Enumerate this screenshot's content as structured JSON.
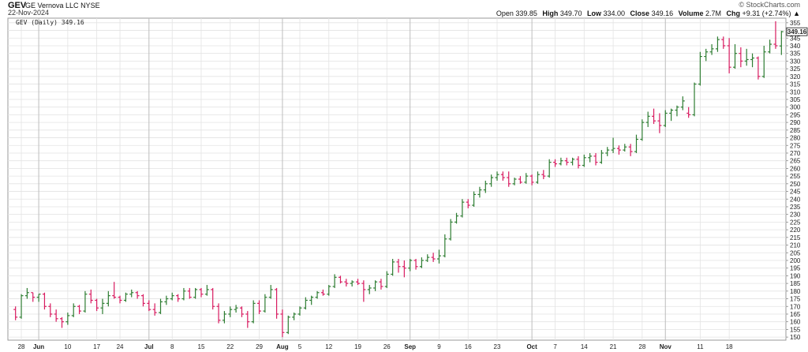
{
  "header": {
    "symbol": "GEV",
    "company": "GE Vernova LLC",
    "exchange": "NYSE",
    "date": "22-Nov-2024",
    "brand": "© StockCharts.com",
    "quote": {
      "open_label": "Open",
      "open": "339.85",
      "high_label": "High",
      "high": "349.70",
      "low_label": "Low",
      "low": "334.00",
      "close_label": "Close",
      "close": "349.16",
      "volume_label": "Volume",
      "volume": "2.7M",
      "chg_label": "Chg",
      "chg": "+9.31 (+2.74%)",
      "chg_arrow": "▲"
    }
  },
  "colors": {
    "up": "#2e7d32",
    "down": "#d81b60",
    "grid": "#e3e3e3",
    "axis": "#888888"
  },
  "chart_data": {
    "type": "ohlc",
    "legend": "GEV (Daily) 349.16",
    "last_price_label": "349.16",
    "ylim": [
      148,
      358
    ],
    "y_ticks": [
      150,
      155,
      160,
      165,
      170,
      175,
      180,
      185,
      190,
      195,
      200,
      205,
      210,
      215,
      220,
      225,
      230,
      235,
      240,
      245,
      250,
      255,
      260,
      265,
      270,
      275,
      280,
      285,
      290,
      295,
      300,
      305,
      310,
      315,
      320,
      325,
      330,
      335,
      340,
      345,
      350,
      355
    ],
    "x_ticks": [
      {
        "label": "28",
        "bar": 1,
        "month": false
      },
      {
        "label": "Jun",
        "bar": 4,
        "month": true
      },
      {
        "label": "10",
        "bar": 9,
        "month": false
      },
      {
        "label": "17",
        "bar": 14,
        "month": false
      },
      {
        "label": "24",
        "bar": 18,
        "month": false
      },
      {
        "label": "Jul",
        "bar": 23,
        "month": true
      },
      {
        "label": "8",
        "bar": 27,
        "month": false
      },
      {
        "label": "15",
        "bar": 32,
        "month": false
      },
      {
        "label": "22",
        "bar": 37,
        "month": false
      },
      {
        "label": "29",
        "bar": 42,
        "month": false
      },
      {
        "label": "Aug",
        "bar": 46,
        "month": true
      },
      {
        "label": "5",
        "bar": 49,
        "month": false
      },
      {
        "label": "12",
        "bar": 54,
        "month": false
      },
      {
        "label": "19",
        "bar": 59,
        "month": false
      },
      {
        "label": "26",
        "bar": 64,
        "month": false
      },
      {
        "label": "Sep",
        "bar": 68,
        "month": true
      },
      {
        "label": "9",
        "bar": 73,
        "month": false
      },
      {
        "label": "16",
        "bar": 78,
        "month": false
      },
      {
        "label": "23",
        "bar": 83,
        "month": false
      },
      {
        "label": "Oct",
        "bar": 89,
        "month": true
      },
      {
        "label": "7",
        "bar": 93,
        "month": false
      },
      {
        "label": "14",
        "bar": 98,
        "month": false
      },
      {
        "label": "21",
        "bar": 103,
        "month": false
      },
      {
        "label": "28",
        "bar": 108,
        "month": false
      },
      {
        "label": "Nov",
        "bar": 112,
        "month": true
      },
      {
        "label": "11",
        "bar": 118,
        "month": false
      },
      {
        "label": "18",
        "bar": 123,
        "month": false
      }
    ],
    "bars": [
      {
        "o": 168,
        "h": 170,
        "l": 161,
        "c": 163
      },
      {
        "o": 163,
        "h": 178,
        "l": 162,
        "c": 177
      },
      {
        "o": 177,
        "h": 182,
        "l": 175,
        "c": 179
      },
      {
        "o": 179,
        "h": 179,
        "l": 173,
        "c": 176
      },
      {
        "o": 176,
        "h": 178,
        "l": 173,
        "c": 178
      },
      {
        "o": 178,
        "h": 179,
        "l": 168,
        "c": 170
      },
      {
        "o": 170,
        "h": 172,
        "l": 163,
        "c": 165
      },
      {
        "o": 165,
        "h": 168,
        "l": 160,
        "c": 162
      },
      {
        "o": 162,
        "h": 163,
        "l": 156,
        "c": 160
      },
      {
        "o": 160,
        "h": 166,
        "l": 158,
        "c": 164
      },
      {
        "o": 164,
        "h": 172,
        "l": 163,
        "c": 170
      },
      {
        "o": 170,
        "h": 171,
        "l": 165,
        "c": 167
      },
      {
        "o": 167,
        "h": 180,
        "l": 166,
        "c": 178
      },
      {
        "o": 178,
        "h": 181,
        "l": 172,
        "c": 174
      },
      {
        "o": 174,
        "h": 175,
        "l": 167,
        "c": 169
      },
      {
        "o": 169,
        "h": 175,
        "l": 165,
        "c": 172
      },
      {
        "o": 172,
        "h": 180,
        "l": 170,
        "c": 177
      },
      {
        "o": 177,
        "h": 186,
        "l": 175,
        "c": 176
      },
      {
        "o": 176,
        "h": 177,
        "l": 172,
        "c": 174
      },
      {
        "o": 174,
        "h": 179,
        "l": 173,
        "c": 178
      },
      {
        "o": 178,
        "h": 181,
        "l": 176,
        "c": 179
      },
      {
        "o": 179,
        "h": 180,
        "l": 175,
        "c": 177
      },
      {
        "o": 177,
        "h": 178,
        "l": 170,
        "c": 172
      },
      {
        "o": 172,
        "h": 174,
        "l": 167,
        "c": 168
      },
      {
        "o": 168,
        "h": 172,
        "l": 164,
        "c": 166
      },
      {
        "o": 166,
        "h": 175,
        "l": 165,
        "c": 173
      },
      {
        "o": 173,
        "h": 177,
        "l": 171,
        "c": 175
      },
      {
        "o": 175,
        "h": 179,
        "l": 174,
        "c": 177
      },
      {
        "o": 177,
        "h": 178,
        "l": 173,
        "c": 175
      },
      {
        "o": 175,
        "h": 182,
        "l": 174,
        "c": 180
      },
      {
        "o": 180,
        "h": 182,
        "l": 175,
        "c": 176
      },
      {
        "o": 176,
        "h": 182,
        "l": 175,
        "c": 181
      },
      {
        "o": 181,
        "h": 182,
        "l": 176,
        "c": 178
      },
      {
        "o": 178,
        "h": 184,
        "l": 177,
        "c": 181
      },
      {
        "o": 181,
        "h": 182,
        "l": 168,
        "c": 170
      },
      {
        "o": 170,
        "h": 172,
        "l": 159,
        "c": 161
      },
      {
        "o": 161,
        "h": 167,
        "l": 159,
        "c": 165
      },
      {
        "o": 165,
        "h": 170,
        "l": 163,
        "c": 168
      },
      {
        "o": 168,
        "h": 171,
        "l": 166,
        "c": 169
      },
      {
        "o": 169,
        "h": 170,
        "l": 163,
        "c": 165
      },
      {
        "o": 165,
        "h": 167,
        "l": 156,
        "c": 160
      },
      {
        "o": 160,
        "h": 174,
        "l": 159,
        "c": 172
      },
      {
        "o": 172,
        "h": 174,
        "l": 165,
        "c": 167
      },
      {
        "o": 167,
        "h": 178,
        "l": 166,
        "c": 176
      },
      {
        "o": 176,
        "h": 184,
        "l": 175,
        "c": 181
      },
      {
        "o": 181,
        "h": 182,
        "l": 162,
        "c": 165
      },
      {
        "o": 165,
        "h": 168,
        "l": 150,
        "c": 153
      },
      {
        "o": 153,
        "h": 164,
        "l": 152,
        "c": 163
      },
      {
        "o": 163,
        "h": 166,
        "l": 161,
        "c": 165
      },
      {
        "o": 165,
        "h": 170,
        "l": 164,
        "c": 169
      },
      {
        "o": 169,
        "h": 176,
        "l": 168,
        "c": 174
      },
      {
        "o": 174,
        "h": 177,
        "l": 171,
        "c": 176
      },
      {
        "o": 176,
        "h": 180,
        "l": 175,
        "c": 179
      },
      {
        "o": 179,
        "h": 181,
        "l": 177,
        "c": 178
      },
      {
        "o": 178,
        "h": 184,
        "l": 177,
        "c": 183
      },
      {
        "o": 183,
        "h": 191,
        "l": 182,
        "c": 189
      },
      {
        "o": 189,
        "h": 190,
        "l": 185,
        "c": 186
      },
      {
        "o": 186,
        "h": 188,
        "l": 183,
        "c": 185
      },
      {
        "o": 185,
        "h": 187,
        "l": 183,
        "c": 186
      },
      {
        "o": 186,
        "h": 188,
        "l": 184,
        "c": 185
      },
      {
        "o": 185,
        "h": 187,
        "l": 173,
        "c": 181
      },
      {
        "o": 181,
        "h": 184,
        "l": 178,
        "c": 182
      },
      {
        "o": 182,
        "h": 187,
        "l": 180,
        "c": 186
      },
      {
        "o": 186,
        "h": 188,
        "l": 181,
        "c": 183
      },
      {
        "o": 183,
        "h": 193,
        "l": 182,
        "c": 191
      },
      {
        "o": 191,
        "h": 201,
        "l": 190,
        "c": 199
      },
      {
        "o": 199,
        "h": 201,
        "l": 192,
        "c": 196
      },
      {
        "o": 196,
        "h": 200,
        "l": 189,
        "c": 195
      },
      {
        "o": 195,
        "h": 201,
        "l": 193,
        "c": 200
      },
      {
        "o": 200,
        "h": 201,
        "l": 194,
        "c": 196
      },
      {
        "o": 196,
        "h": 202,
        "l": 195,
        "c": 200
      },
      {
        "o": 200,
        "h": 204,
        "l": 199,
        "c": 202
      },
      {
        "o": 202,
        "h": 205,
        "l": 199,
        "c": 201
      },
      {
        "o": 201,
        "h": 207,
        "l": 198,
        "c": 203
      },
      {
        "o": 203,
        "h": 217,
        "l": 202,
        "c": 214
      },
      {
        "o": 214,
        "h": 227,
        "l": 213,
        "c": 225
      },
      {
        "o": 225,
        "h": 231,
        "l": 224,
        "c": 229
      },
      {
        "o": 229,
        "h": 240,
        "l": 228,
        "c": 238
      },
      {
        "o": 238,
        "h": 240,
        "l": 234,
        "c": 236
      },
      {
        "o": 236,
        "h": 245,
        "l": 235,
        "c": 243
      },
      {
        "o": 243,
        "h": 248,
        "l": 241,
        "c": 246
      },
      {
        "o": 246,
        "h": 252,
        "l": 244,
        "c": 250
      },
      {
        "o": 250,
        "h": 256,
        "l": 248,
        "c": 254
      },
      {
        "o": 254,
        "h": 258,
        "l": 252,
        "c": 256
      },
      {
        "o": 256,
        "h": 258,
        "l": 252,
        "c": 254
      },
      {
        "o": 254,
        "h": 258,
        "l": 248,
        "c": 250
      },
      {
        "o": 250,
        "h": 254,
        "l": 249,
        "c": 253
      },
      {
        "o": 253,
        "h": 255,
        "l": 250,
        "c": 251
      },
      {
        "o": 251,
        "h": 257,
        "l": 250,
        "c": 255
      },
      {
        "o": 255,
        "h": 256,
        "l": 249,
        "c": 251
      },
      {
        "o": 251,
        "h": 258,
        "l": 250,
        "c": 256
      },
      {
        "o": 256,
        "h": 259,
        "l": 253,
        "c": 255
      },
      {
        "o": 255,
        "h": 266,
        "l": 254,
        "c": 264
      },
      {
        "o": 264,
        "h": 266,
        "l": 261,
        "c": 263
      },
      {
        "o": 263,
        "h": 267,
        "l": 262,
        "c": 265
      },
      {
        "o": 265,
        "h": 267,
        "l": 262,
        "c": 264
      },
      {
        "o": 264,
        "h": 267,
        "l": 262,
        "c": 266
      },
      {
        "o": 266,
        "h": 268,
        "l": 260,
        "c": 262
      },
      {
        "o": 262,
        "h": 269,
        "l": 261,
        "c": 267
      },
      {
        "o": 267,
        "h": 270,
        "l": 264,
        "c": 268
      },
      {
        "o": 268,
        "h": 270,
        "l": 262,
        "c": 264
      },
      {
        "o": 264,
        "h": 272,
        "l": 263,
        "c": 270
      },
      {
        "o": 270,
        "h": 274,
        "l": 268,
        "c": 272
      },
      {
        "o": 272,
        "h": 280,
        "l": 270,
        "c": 273
      },
      {
        "o": 273,
        "h": 275,
        "l": 269,
        "c": 272
      },
      {
        "o": 272,
        "h": 276,
        "l": 271,
        "c": 274
      },
      {
        "o": 274,
        "h": 276,
        "l": 268,
        "c": 271
      },
      {
        "o": 271,
        "h": 282,
        "l": 270,
        "c": 279
      },
      {
        "o": 279,
        "h": 292,
        "l": 278,
        "c": 290
      },
      {
        "o": 290,
        "h": 297,
        "l": 287,
        "c": 294
      },
      {
        "o": 294,
        "h": 299,
        "l": 289,
        "c": 291
      },
      {
        "o": 291,
        "h": 296,
        "l": 283,
        "c": 288
      },
      {
        "o": 288,
        "h": 298,
        "l": 287,
        "c": 296
      },
      {
        "o": 296,
        "h": 299,
        "l": 291,
        "c": 298
      },
      {
        "o": 298,
        "h": 301,
        "l": 294,
        "c": 300
      },
      {
        "o": 300,
        "h": 307,
        "l": 298,
        "c": 304
      },
      {
        "o": 296,
        "h": 300,
        "l": 293,
        "c": 295
      },
      {
        "o": 295,
        "h": 316,
        "l": 294,
        "c": 315
      },
      {
        "o": 315,
        "h": 336,
        "l": 314,
        "c": 333
      },
      {
        "o": 333,
        "h": 338,
        "l": 330,
        "c": 336
      },
      {
        "o": 336,
        "h": 341,
        "l": 334,
        "c": 338
      },
      {
        "o": 338,
        "h": 346,
        "l": 336,
        "c": 344
      },
      {
        "o": 344,
        "h": 346,
        "l": 338,
        "c": 340
      },
      {
        "o": 340,
        "h": 345,
        "l": 322,
        "c": 326
      },
      {
        "o": 326,
        "h": 341,
        "l": 325,
        "c": 335
      },
      {
        "o": 335,
        "h": 339,
        "l": 326,
        "c": 330
      },
      {
        "o": 330,
        "h": 338,
        "l": 327,
        "c": 331
      },
      {
        "o": 331,
        "h": 335,
        "l": 326,
        "c": 332
      },
      {
        "o": 332,
        "h": 333,
        "l": 318,
        "c": 320
      },
      {
        "o": 320,
        "h": 340,
        "l": 319,
        "c": 336
      },
      {
        "o": 336,
        "h": 344,
        "l": 335,
        "c": 341
      },
      {
        "o": 341,
        "h": 356,
        "l": 338,
        "c": 340
      },
      {
        "o": 339.85,
        "h": 349.7,
        "l": 334,
        "c": 349.16
      }
    ]
  }
}
